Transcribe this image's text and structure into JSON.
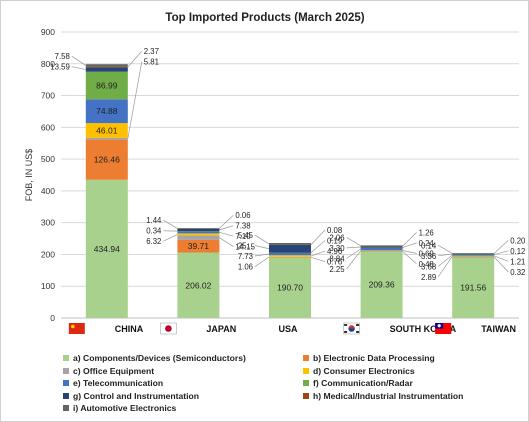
{
  "chart_data": {
    "type": "bar",
    "stacked": true,
    "title": "Top Imported Products (March 2025)",
    "ylabel": "FOB, IN US$",
    "xlabel": "",
    "ylim": [
      0,
      900
    ],
    "yticks": [
      0,
      100,
      200,
      300,
      400,
      500,
      600,
      700,
      800,
      900
    ],
    "grid": true,
    "legend_position": "bottom",
    "categories": [
      "CHINA",
      "JAPAN",
      "USA",
      "SOUTH KOREA",
      "TAIWAN"
    ],
    "category_flags": [
      "china-flag-icon",
      "japan-flag-icon",
      "usa-flag-icon",
      "south-korea-flag-icon",
      "taiwan-flag-icon"
    ],
    "series": [
      {
        "name": "a) Components/Devices (Semiconductors)",
        "color": "#a9d18e",
        "values": [
          434.94,
          206.02,
          190.7,
          209.36,
          191.56
        ],
        "labels": [
          "434.94",
          "206.02",
          "190.70",
          "209.36",
          "191.56"
        ]
      },
      {
        "name": "b) Electronic Data Processing",
        "color": "#ed7d31",
        "values": [
          126.46,
          39.71,
          0.76,
          0.48,
          0.32
        ],
        "labels": [
          "126.46",
          "39.71",
          "0.76",
          "0.48",
          "0.32"
        ]
      },
      {
        "name": "c) Office Equipment",
        "color": "#a5a5a5",
        "values": [
          5.81,
          14.15,
          1.06,
          2.25,
          2.89
        ],
        "labels": [
          "5.81",
          "14.15",
          "1.06",
          "2.25",
          "2.89"
        ]
      },
      {
        "name": "d) Consumer Electronics",
        "color": "#ffc000",
        "values": [
          46.01,
          6.32,
          4.96,
          0.69,
          1.21
        ],
        "labels": [
          "46.01",
          "6.32",
          "4.96",
          "0.69",
          "1.21"
        ]
      },
      {
        "name": "e) Telecommunication",
        "color": "#4472c4",
        "values": [
          74.88,
          7.1,
          7.73,
          8.84,
          3.68
        ],
        "labels": [
          "74.88",
          "7.10",
          "7.73",
          "8.84",
          "3.68"
        ]
      },
      {
        "name": "f) Communication/Radar",
        "color": "#70ad47",
        "values": [
          86.99,
          0.34,
          0.19,
          0.24,
          0.12
        ],
        "labels": [
          "86.99",
          "0.34",
          "0.19",
          "0.24",
          "0.12"
        ]
      },
      {
        "name": "g) Control and Instrumentation",
        "color": "#264478",
        "values": [
          13.59,
          7.38,
          25.0,
          3.3,
          3.36
        ],
        "labels": [
          "13.59",
          "7.38",
          "25...",
          "3.30",
          "3.36"
        ]
      },
      {
        "name": "h) Medical/Industrial Instrumentation",
        "color": "#9e480e",
        "values": [
          2.37,
          1.44,
          0.08,
          1.26,
          0.2
        ],
        "labels": [
          "2.37",
          "1.44",
          "0.08",
          "1.26",
          "0.20"
        ]
      },
      {
        "name": "i) Automotive Electronics",
        "color": "#636363",
        "values": [
          7.58,
          0.06,
          5.45,
          2.06,
          0.14
        ],
        "labels": [
          "7.58",
          "0.06",
          "5.45",
          "2.06",
          "0.14"
        ]
      }
    ]
  }
}
